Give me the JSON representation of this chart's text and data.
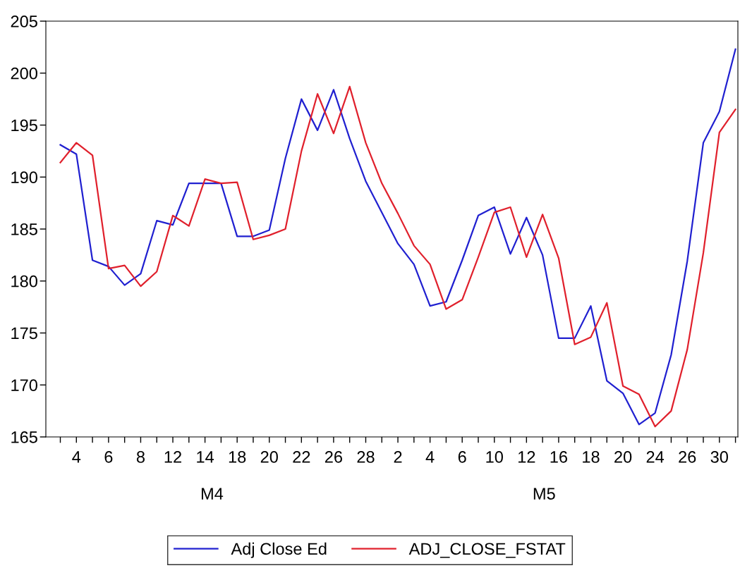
{
  "chart_data": {
    "type": "line",
    "categories": [
      null,
      "4",
      null,
      "6",
      null,
      "8",
      null,
      "12",
      null,
      "14",
      null,
      "18",
      null,
      "20",
      null,
      "22",
      null,
      "26",
      null,
      "28",
      null,
      "2",
      null,
      "4",
      null,
      "6",
      null,
      "10",
      null,
      "12",
      null,
      "16",
      null,
      "18",
      null,
      "20",
      null,
      "24",
      null,
      "26",
      null,
      "30",
      null
    ],
    "series": [
      {
        "name": "Adj Close Ed",
        "color": "#2020d0",
        "values": [
          193.1,
          192.2,
          182.0,
          181.4,
          179.6,
          180.7,
          185.8,
          185.4,
          189.4,
          189.4,
          189.4,
          184.3,
          184.3,
          184.9,
          191.8,
          197.5,
          194.5,
          198.4,
          193.7,
          189.6,
          186.6,
          183.6,
          181.6,
          177.6,
          178.0,
          182.0,
          186.3,
          187.1,
          182.6,
          186.1,
          182.5,
          174.5,
          174.5,
          177.6,
          170.4,
          169.2,
          166.2,
          167.3,
          172.9,
          181.9,
          193.3,
          196.3,
          202.3
        ]
      },
      {
        "name": "ADJ_CLOSE_FSTAT",
        "color": "#e0202c",
        "values": [
          191.4,
          193.3,
          192.1,
          181.2,
          181.5,
          179.5,
          180.9,
          186.3,
          185.3,
          189.8,
          189.4,
          189.5,
          184.0,
          184.4,
          185.0,
          192.5,
          198.0,
          194.2,
          198.7,
          193.3,
          189.4,
          186.5,
          183.4,
          181.6,
          177.3,
          178.2,
          182.3,
          186.6,
          187.1,
          182.3,
          186.4,
          182.2,
          173.9,
          174.6,
          177.9,
          169.9,
          169.1,
          166.0,
          167.5,
          173.4,
          182.7,
          194.3,
          196.5
        ]
      }
    ],
    "ylim": [
      165,
      205
    ],
    "yticks": [
      165,
      170,
      175,
      180,
      185,
      190,
      195,
      200,
      205
    ],
    "annotations": [
      "M4",
      "M5"
    ],
    "legend": "bottom",
    "grid": false,
    "marker": "none",
    "line_style": "solid"
  }
}
